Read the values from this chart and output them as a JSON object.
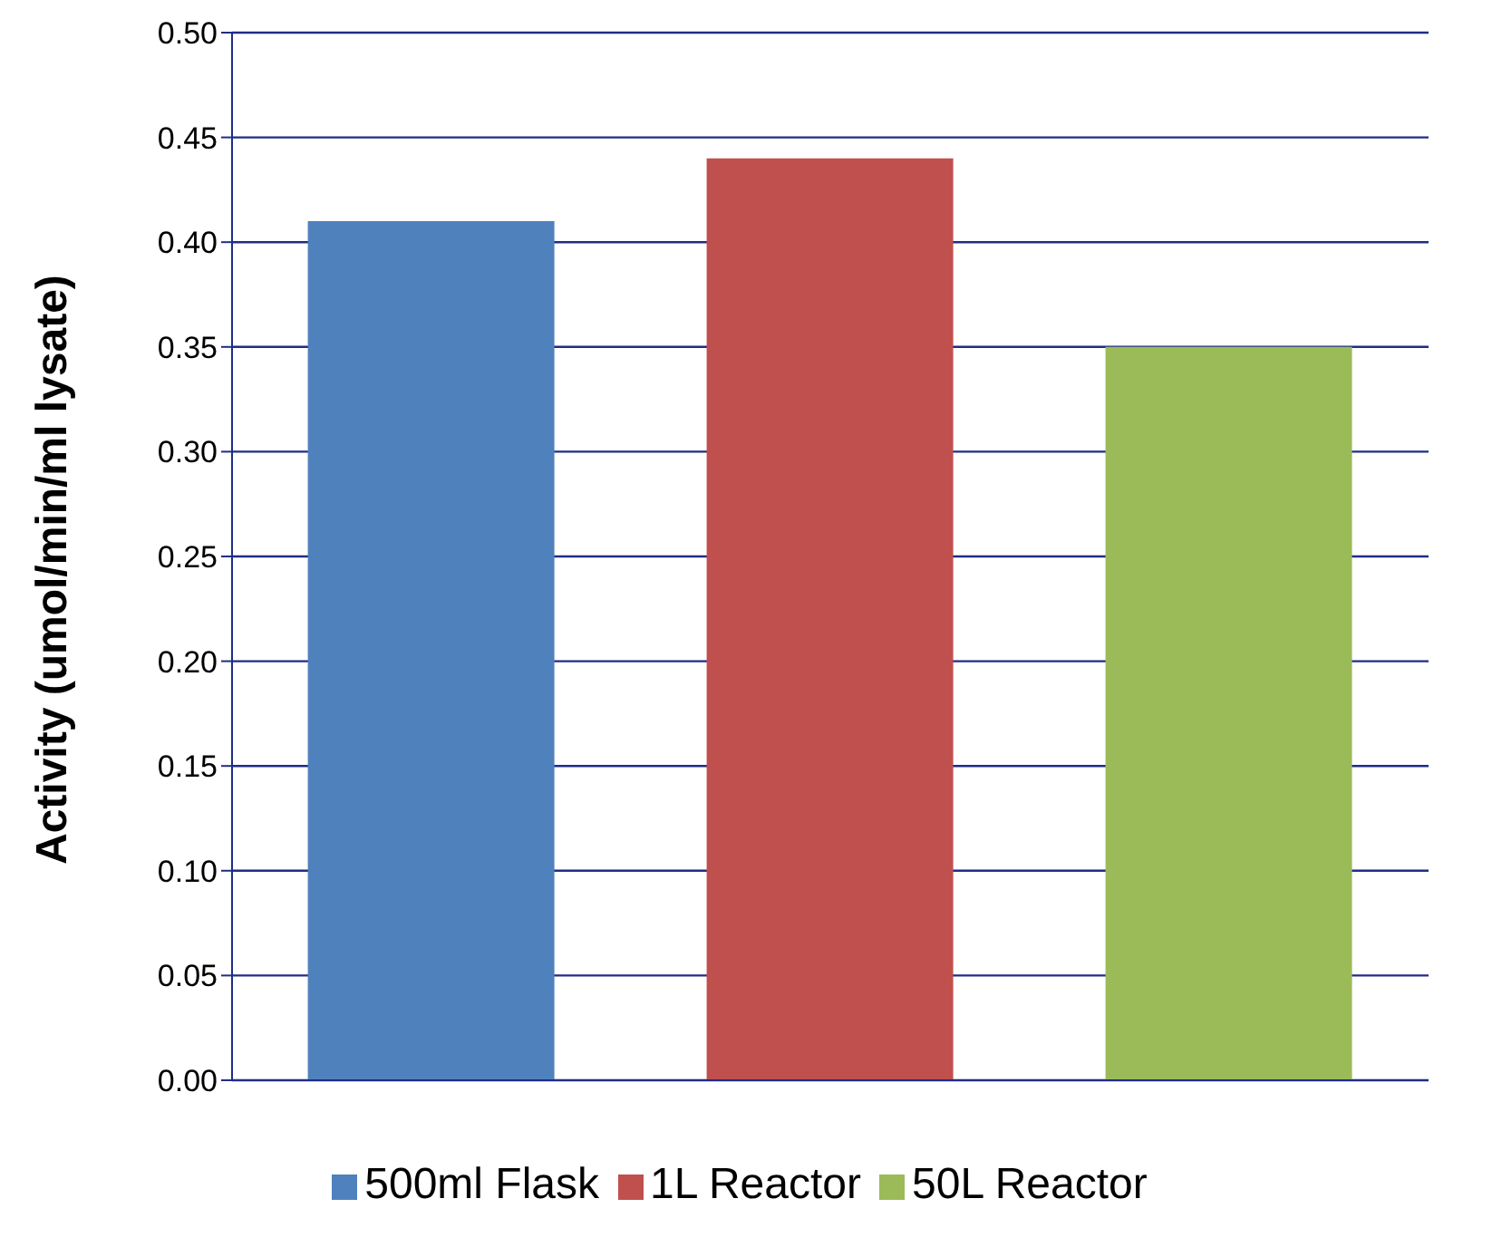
{
  "chart_data": {
    "type": "bar",
    "ylabel": "Activity (umol/min/ml lysate)",
    "categories": [
      null,
      null,
      null
    ],
    "series": [
      {
        "name": "500ml Flask",
        "color": "#4f81bd",
        "values": [
          0.41,
          null,
          null
        ]
      },
      {
        "name": "1L Reactor",
        "color": "#c0504d",
        "values": [
          null,
          0.44,
          null
        ]
      },
      {
        "name": "50L Reactor",
        "color": "#9bbb59",
        "values": [
          null,
          null,
          0.35
        ]
      }
    ],
    "ylim": [
      0,
      0.5
    ],
    "yticks": [
      {
        "value": 0,
        "label": "0.00"
      },
      {
        "value": 0.05,
        "label": "0.05"
      },
      {
        "value": 0.1,
        "label": "0.10"
      },
      {
        "value": 0.15,
        "label": "0.15"
      },
      {
        "value": 0.2,
        "label": "0.20"
      },
      {
        "value": 0.25,
        "label": "0.25"
      },
      {
        "value": 0.3,
        "label": "0.30"
      },
      {
        "value": 0.35,
        "label": "0.35"
      },
      {
        "value": 0.4,
        "label": "0.40"
      },
      {
        "value": 0.45,
        "label": "0.45"
      },
      {
        "value": 0.5,
        "label": "0.50"
      }
    ],
    "grid": "y",
    "legend": "bottom",
    "tick_labels": "y"
  }
}
